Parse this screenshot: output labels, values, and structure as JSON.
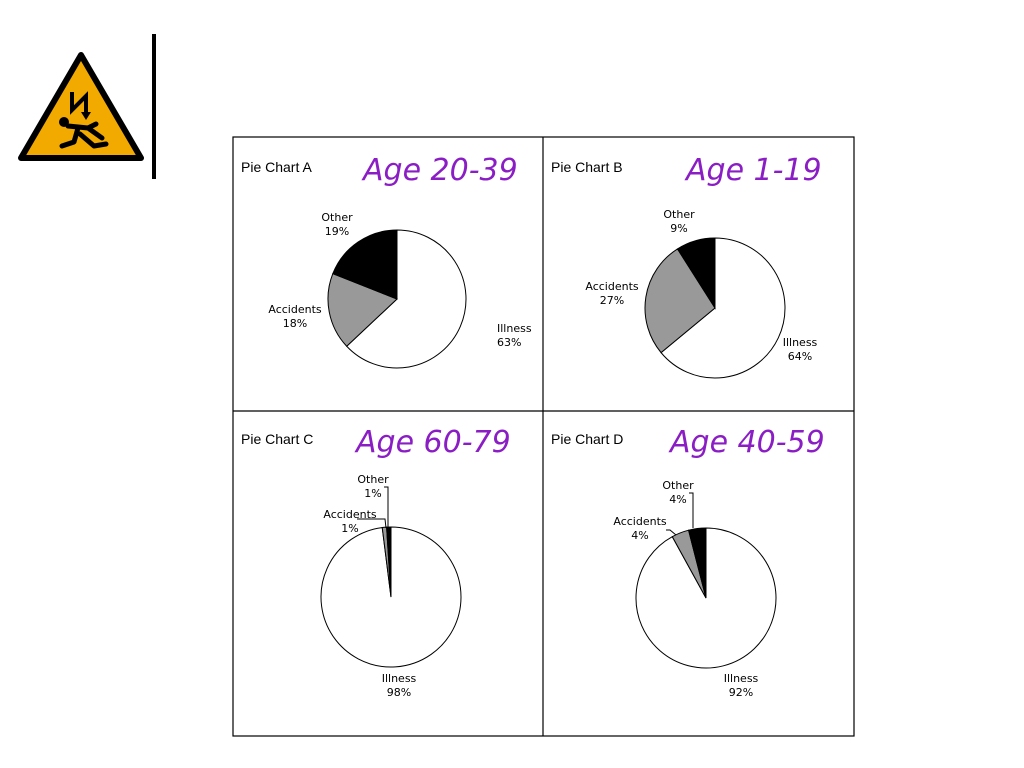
{
  "sign": {
    "icon": "electric-shock-warning-icon",
    "colors": {
      "fill": "#f2a900",
      "border": "#000000"
    }
  },
  "colors": {
    "illness": "#ffffff",
    "accidents": "#999999",
    "other": "#000000",
    "age_label": "#8a1ec4"
  },
  "chart_data": [
    {
      "type": "pie",
      "title": "Pie Chart A",
      "subtitle": "Age 20-39",
      "slices": [
        {
          "label": "Illness",
          "value": 63,
          "pct_label": "63%"
        },
        {
          "label": "Accidents",
          "value": 18,
          "pct_label": "18%"
        },
        {
          "label": "Other",
          "value": 19,
          "pct_label": "19%"
        }
      ]
    },
    {
      "type": "pie",
      "title": "Pie Chart B",
      "subtitle": "Age 1-19",
      "slices": [
        {
          "label": "Illness",
          "value": 64,
          "pct_label": "64%"
        },
        {
          "label": "Accidents",
          "value": 27,
          "pct_label": "27%"
        },
        {
          "label": "Other",
          "value": 9,
          "pct_label": "9%"
        }
      ]
    },
    {
      "type": "pie",
      "title": "Pie Chart C",
      "subtitle": "Age 60-79",
      "slices": [
        {
          "label": "Illness",
          "value": 98,
          "pct_label": "98%"
        },
        {
          "label": "Accidents",
          "value": 1,
          "pct_label": "1%"
        },
        {
          "label": "Other",
          "value": 1,
          "pct_label": "1%"
        }
      ]
    },
    {
      "type": "pie",
      "title": "Pie Chart D",
      "subtitle": "Age 40-59",
      "slices": [
        {
          "label": "Illness",
          "value": 92,
          "pct_label": "92%"
        },
        {
          "label": "Accidents",
          "value": 4,
          "pct_label": "4%"
        },
        {
          "label": "Other",
          "value": 4,
          "pct_label": "4%"
        }
      ]
    }
  ]
}
